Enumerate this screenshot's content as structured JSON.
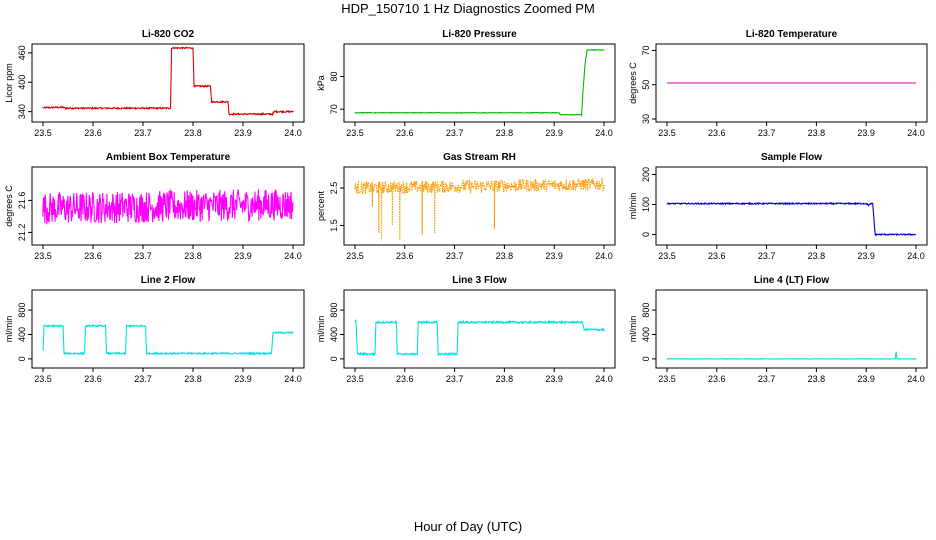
{
  "title": "HDP_150710  1 Hz Diagnostics Zoomed PM",
  "footer_label": "Hour of Day (UTC)",
  "chart_data": [
    {
      "type": "line",
      "title": "Li-820 CO2",
      "ylabel": "Licor ppm",
      "color": "#e00000",
      "xlim": [
        23.5,
        24.0
      ],
      "xticks": [
        "23.5",
        "23.6",
        "23.7",
        "23.8",
        "23.9",
        "24.0"
      ],
      "ylim": [
        325,
        472
      ],
      "yticks": [
        340,
        400,
        460
      ],
      "noise": 1.5,
      "x": [
        23.5,
        23.54,
        23.545,
        23.755,
        23.757,
        23.8,
        23.802,
        23.835,
        23.837,
        23.87,
        23.872,
        23.96,
        23.962,
        24.0
      ],
      "y": [
        348,
        349,
        347,
        347,
        470,
        470,
        392,
        392,
        360,
        360,
        335,
        335,
        340,
        340
      ]
    },
    {
      "type": "line",
      "title": "Li-820 Pressure",
      "ylabel": "kPa",
      "color": "#00bb00",
      "xlim": [
        23.5,
        24.0
      ],
      "xticks": [
        "23.5",
        "23.6",
        "23.7",
        "23.8",
        "23.9",
        "24.0"
      ],
      "ylim": [
        67,
        89
      ],
      "yticks": [
        70,
        80
      ],
      "noise": 0.1,
      "x": [
        23.5,
        23.91,
        23.912,
        23.955,
        23.958,
        23.962,
        23.966,
        24.0
      ],
      "y": [
        68.9,
        68.9,
        68.3,
        68.3,
        76,
        84,
        88.1,
        88.1
      ]
    },
    {
      "type": "line",
      "title": "Li-820 Temperature",
      "ylabel": "degrees C",
      "color": "#cc00cc",
      "xlim": [
        23.5,
        24.0
      ],
      "xticks": [
        "23.5",
        "23.6",
        "23.7",
        "23.8",
        "23.9",
        "24.0"
      ],
      "ylim": [
        30,
        72
      ],
      "yticks": [
        30,
        50,
        70
      ],
      "noise": 0,
      "x": [
        23.5,
        24.0
      ],
      "y": [
        51,
        51
      ]
    },
    {
      "type": "line",
      "title": "Ambient Box Temperature",
      "ylabel": "degrees C",
      "color": "#ff00ff",
      "xlim": [
        23.5,
        24.0
      ],
      "xticks": [
        "23.5",
        "23.6",
        "23.7",
        "23.8",
        "23.9",
        "24.0"
      ],
      "ylim": [
        21.08,
        21.98
      ],
      "yticks": [
        21.2,
        21.6
      ],
      "noise": 0.2,
      "x": [
        23.5,
        24.0
      ],
      "y": [
        21.5,
        21.55
      ]
    },
    {
      "type": "line",
      "title": "Gas Stream RH",
      "ylabel": "percent",
      "color": "#ff9900",
      "xlim": [
        23.5,
        24.0
      ],
      "xticks": [
        "23.5",
        "23.6",
        "23.7",
        "23.8",
        "23.9",
        "24.0"
      ],
      "ylim": [
        1.06,
        2.98
      ],
      "yticks": [
        1.5,
        2.5
      ],
      "noise": 0.17,
      "x": [
        23.5,
        24.0
      ],
      "y": [
        2.5,
        2.6
      ],
      "spikes": [
        [
          23.535,
          2.0
        ],
        [
          23.548,
          1.3
        ],
        [
          23.553,
          1.1
        ],
        [
          23.575,
          1.5
        ],
        [
          23.59,
          1.1
        ],
        [
          23.635,
          1.25
        ],
        [
          23.66,
          1.3
        ],
        [
          23.78,
          1.4
        ]
      ]
    },
    {
      "type": "line",
      "title": "Sample Flow",
      "ylabel": "ml/min",
      "color": "#0000cc",
      "xlim": [
        23.5,
        24.0
      ],
      "xticks": [
        "23.5",
        "23.6",
        "23.7",
        "23.8",
        "23.9",
        "24.0"
      ],
      "ylim": [
        -25,
        215
      ],
      "yticks": [
        0,
        100,
        200
      ],
      "noise": 2,
      "x": [
        23.5,
        23.9,
        23.905,
        23.91,
        23.913,
        23.918,
        24.0
      ],
      "y": [
        103,
        103,
        98,
        103,
        103,
        0,
        0
      ]
    },
    {
      "type": "line",
      "title": "Line 2 Flow",
      "ylabel": "ml/min",
      "color": "#00e0e0",
      "xlim": [
        23.5,
        24.0
      ],
      "xticks": [
        "23.5",
        "23.6",
        "23.7",
        "23.8",
        "23.9",
        "24.0"
      ],
      "ylim": [
        -100,
        1080
      ],
      "yticks": [
        0,
        400,
        800
      ],
      "noise": 12,
      "x": [
        23.5,
        23.502,
        23.54,
        23.542,
        23.583,
        23.585,
        23.625,
        23.627,
        23.665,
        23.667,
        23.705,
        23.707,
        23.957,
        23.96,
        24.0
      ],
      "y": [
        140,
        540,
        540,
        90,
        90,
        540,
        540,
        90,
        90,
        540,
        540,
        90,
        90,
        430,
        430
      ]
    },
    {
      "type": "line",
      "title": "Line 3 Flow",
      "ylabel": "ml/min",
      "color": "#00e0e0",
      "xlim": [
        23.5,
        24.0
      ],
      "xticks": [
        "23.5",
        "23.6",
        "23.7",
        "23.8",
        "23.9",
        "24.0"
      ],
      "ylim": [
        -100,
        1080
      ],
      "yticks": [
        0,
        400,
        800
      ],
      "noise": 15,
      "x": [
        23.5,
        23.502,
        23.505,
        23.54,
        23.542,
        23.583,
        23.585,
        23.625,
        23.627,
        23.665,
        23.667,
        23.705,
        23.707,
        23.957,
        23.96,
        24.0
      ],
      "y": [
        620,
        620,
        80,
        80,
        600,
        600,
        80,
        80,
        600,
        600,
        80,
        80,
        600,
        600,
        480,
        480
      ]
    },
    {
      "type": "line",
      "title": "Line 4 (LT) Flow",
      "ylabel": "ml/min",
      "color": "#00e0e0",
      "xlim": [
        23.5,
        24.0
      ],
      "xticks": [
        "23.5",
        "23.6",
        "23.7",
        "23.8",
        "23.9",
        "24.0"
      ],
      "ylim": [
        -100,
        1080
      ],
      "yticks": [
        0,
        400,
        800
      ],
      "noise": 4,
      "x": [
        23.5,
        23.958,
        23.96,
        23.962,
        24.0
      ],
      "y": [
        0,
        0,
        120,
        0,
        0
      ]
    }
  ]
}
